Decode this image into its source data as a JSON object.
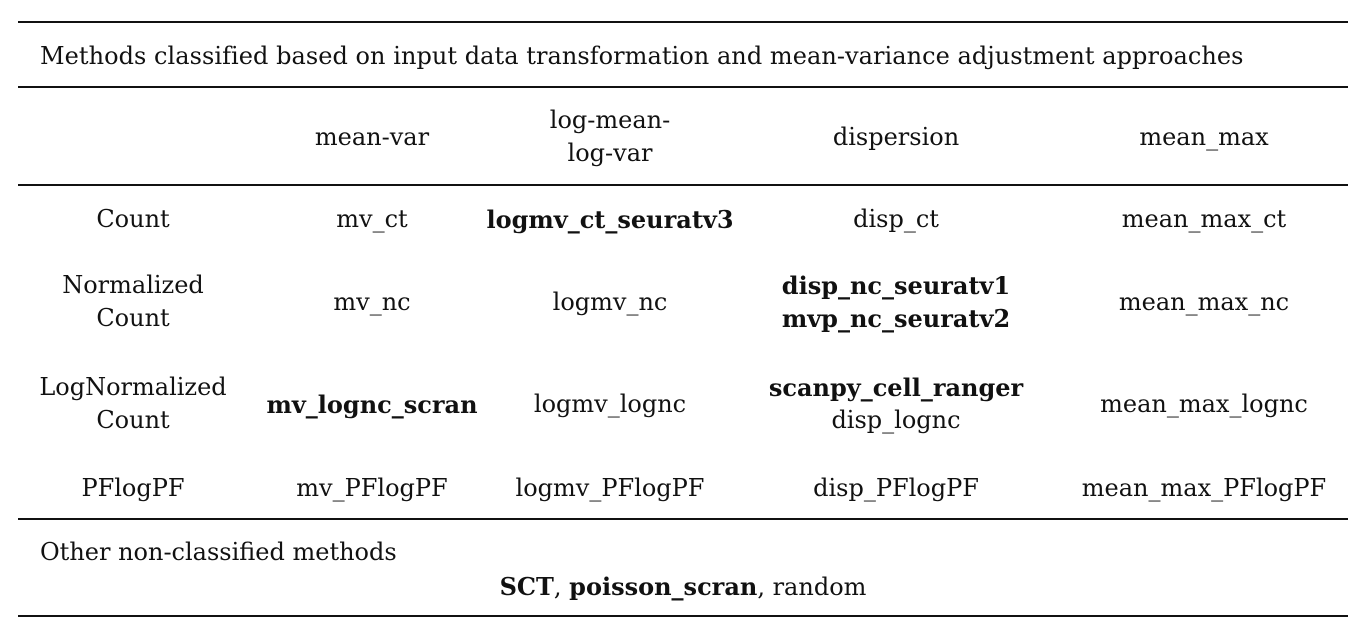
{
  "caption": "Methods classified based on input data transformation and mean-variance adjustment approaches",
  "columns": [
    "mean-var",
    "log-mean-log-var",
    "dispersion",
    "mean_max"
  ],
  "column_lines": [
    [
      "mean-var"
    ],
    [
      "log-mean-",
      "log-var"
    ],
    [
      "dispersion"
    ],
    [
      "mean_max"
    ]
  ],
  "rows": [
    {
      "label_lines": [
        "Count"
      ],
      "cells": [
        [
          {
            "text": "mv_ct",
            "bold": false
          }
        ],
        [
          {
            "text": "logmv_ct_seuratv3",
            "bold": true
          }
        ],
        [
          {
            "text": "disp_ct",
            "bold": false
          }
        ],
        [
          {
            "text": "mean_max_ct",
            "bold": false
          }
        ]
      ]
    },
    {
      "label_lines": [
        "Normalized",
        "Count"
      ],
      "cells": [
        [
          {
            "text": "mv_nc",
            "bold": false
          }
        ],
        [
          {
            "text": "logmv_nc",
            "bold": false
          }
        ],
        [
          {
            "text": "disp_nc_seuratv1",
            "bold": true
          },
          {
            "text": "mvp_nc_seuratv2",
            "bold": true
          }
        ],
        [
          {
            "text": "mean_max_nc",
            "bold": false
          }
        ]
      ]
    },
    {
      "label_lines": [
        "LogNormalized",
        "Count"
      ],
      "cells": [
        [
          {
            "text": "mv_lognc_scran",
            "bold": true
          }
        ],
        [
          {
            "text": "logmv_lognc",
            "bold": false
          }
        ],
        [
          {
            "text": "scanpy_cell_ranger",
            "bold": true
          },
          {
            "text": "disp_lognc",
            "bold": false
          }
        ],
        [
          {
            "text": "mean_max_lognc",
            "bold": false
          }
        ]
      ]
    },
    {
      "label_lines": [
        "PFlogPF"
      ],
      "cells": [
        [
          {
            "text": "mv_PFlogPF",
            "bold": false
          }
        ],
        [
          {
            "text": "logmv_PFlogPF",
            "bold": false
          }
        ],
        [
          {
            "text": "disp_PFlogPF",
            "bold": false
          }
        ],
        [
          {
            "text": "mean_max_PFlogPF",
            "bold": false
          }
        ]
      ]
    }
  ],
  "other": {
    "title": "Other non-classified methods",
    "items": [
      {
        "text": "SCT",
        "bold": true
      },
      {
        "text": "poisson_scran",
        "bold": true
      },
      {
        "text": "random",
        "bold": false
      }
    ],
    "separator": ", "
  }
}
